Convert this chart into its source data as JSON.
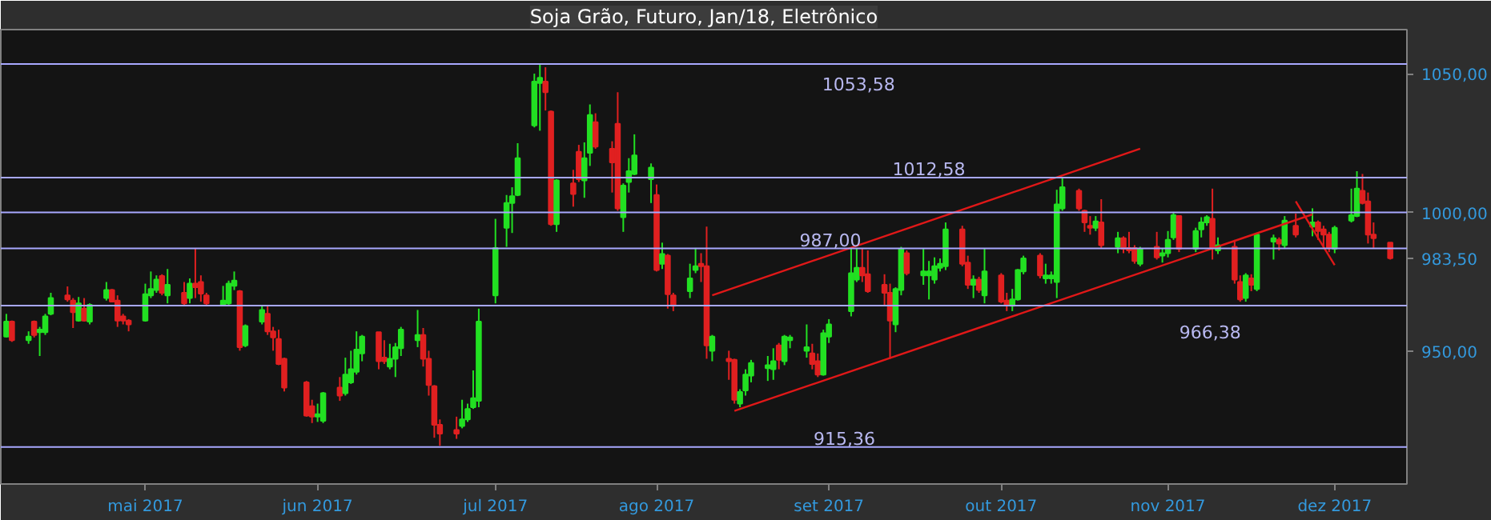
{
  "chart_data": {
    "type": "candlestick",
    "title": "Soja Grão, Futuro, Jan/18, Eletrônico",
    "x": [
      "2017-04-06",
      "2017-04-07",
      "2017-04-10",
      "2017-04-11",
      "2017-04-12",
      "2017-04-13",
      "2017-04-14",
      "2017-04-17",
      "2017-04-18",
      "2017-04-19",
      "2017-04-20",
      "2017-04-21",
      "2017-04-24",
      "2017-04-25",
      "2017-04-26",
      "2017-04-27",
      "2017-04-28",
      "2017-05-01",
      "2017-05-02",
      "2017-05-03",
      "2017-05-04",
      "2017-05-05",
      "2017-05-08",
      "2017-05-09",
      "2017-05-10",
      "2017-05-11",
      "2017-05-12",
      "2017-05-15",
      "2017-05-16",
      "2017-05-17",
      "2017-05-18",
      "2017-05-19",
      "2017-05-22",
      "2017-05-23",
      "2017-05-24",
      "2017-05-25",
      "2017-05-26",
      "2017-05-30",
      "2017-05-31",
      "2017-06-01",
      "2017-06-02",
      "2017-06-05",
      "2017-06-06",
      "2017-06-07",
      "2017-06-08",
      "2017-06-09",
      "2017-06-12",
      "2017-06-13",
      "2017-06-14",
      "2017-06-15",
      "2017-06-16",
      "2017-06-19",
      "2017-06-20",
      "2017-06-21",
      "2017-06-22",
      "2017-06-23",
      "2017-06-26",
      "2017-06-27",
      "2017-06-28",
      "2017-06-29",
      "2017-06-30",
      "2017-07-03",
      "2017-07-05",
      "2017-07-06",
      "2017-07-07",
      "2017-07-10",
      "2017-07-11",
      "2017-07-12",
      "2017-07-13",
      "2017-07-14",
      "2017-07-17",
      "2017-07-18",
      "2017-07-19",
      "2017-07-20",
      "2017-07-21",
      "2017-07-24",
      "2017-07-25",
      "2017-07-26",
      "2017-07-27",
      "2017-07-28",
      "2017-07-31",
      "2017-08-01",
      "2017-08-02",
      "2017-08-03",
      "2017-08-04",
      "2017-08-07",
      "2017-08-08",
      "2017-08-09",
      "2017-08-10",
      "2017-08-11",
      "2017-08-14",
      "2017-08-15",
      "2017-08-16",
      "2017-08-17",
      "2017-08-18",
      "2017-08-21",
      "2017-08-22",
      "2017-08-23",
      "2017-08-24",
      "2017-08-25",
      "2017-08-28",
      "2017-08-29",
      "2017-08-30",
      "2017-08-31",
      "2017-09-01",
      "2017-09-05",
      "2017-09-06",
      "2017-09-07",
      "2017-09-08",
      "2017-09-11",
      "2017-09-12",
      "2017-09-13",
      "2017-09-14",
      "2017-09-15",
      "2017-09-18",
      "2017-09-19",
      "2017-09-20",
      "2017-09-21",
      "2017-09-22",
      "2017-09-25",
      "2017-09-26",
      "2017-09-27",
      "2017-09-28",
      "2017-09-29",
      "2017-10-02",
      "2017-10-03",
      "2017-10-04",
      "2017-10-05",
      "2017-10-06",
      "2017-10-09",
      "2017-10-10",
      "2017-10-11",
      "2017-10-12",
      "2017-10-13",
      "2017-10-16",
      "2017-10-17",
      "2017-10-18",
      "2017-10-19",
      "2017-10-20",
      "2017-10-23",
      "2017-10-24",
      "2017-10-25",
      "2017-10-26",
      "2017-10-27",
      "2017-10-30",
      "2017-10-31",
      "2017-11-01",
      "2017-11-02",
      "2017-11-03",
      "2017-11-06",
      "2017-11-07",
      "2017-11-08",
      "2017-11-09",
      "2017-11-10",
      "2017-11-13",
      "2017-11-14",
      "2017-11-15",
      "2017-11-16",
      "2017-11-17",
      "2017-11-20",
      "2017-11-21",
      "2017-11-22",
      "2017-11-24",
      "2017-11-27",
      "2017-11-28",
      "2017-11-29",
      "2017-11-30",
      "2017-12-01",
      "2017-12-04",
      "2017-12-05",
      "2017-12-06",
      "2017-12-07",
      "2017-12-08",
      "2017-12-11"
    ],
    "ohlc": [
      [
        955.2,
        963.4,
        954.9,
        960.6
      ],
      [
        960.6,
        961.0,
        953.3,
        953.9
      ],
      [
        953.9,
        957.1,
        952.6,
        955.2
      ],
      [
        960.6,
        961.0,
        954.9,
        955.8
      ],
      [
        956.8,
        958.7,
        948.2,
        957.7
      ],
      [
        956.8,
        963.4,
        955.8,
        962.5
      ],
      [
        963.4,
        971.0,
        962.9,
        969.1
      ],
      [
        970.1,
        973.3,
        967.8,
        968.6
      ],
      [
        968.2,
        969.1,
        958.3,
        964.0
      ],
      [
        961.0,
        969.5,
        960.6,
        967.2
      ],
      [
        965.3,
        969.1,
        960.6,
        961.0
      ],
      [
        960.6,
        967.2,
        959.6,
        966.7
      ],
      [
        969.1,
        974.9,
        968.2,
        972.0
      ],
      [
        972.0,
        972.4,
        967.8,
        967.8
      ],
      [
        968.2,
        970.1,
        958.7,
        961.0
      ],
      [
        962.5,
        963.4,
        959.6,
        961.0
      ],
      [
        961.0,
        961.5,
        957.1,
        959.6
      ],
      [
        961.0,
        974.3,
        960.6,
        970.5
      ],
      [
        970.1,
        978.7,
        969.1,
        972.4
      ],
      [
        972.0,
        977.3,
        971.0,
        975.8
      ],
      [
        977.1,
        977.7,
        970.1,
        971.0
      ],
      [
        970.1,
        979.6,
        967.2,
        973.9
      ],
      [
        971.0,
        974.9,
        966.3,
        967.2
      ],
      [
        969.1,
        976.2,
        967.2,
        974.3
      ],
      [
        974.3,
        986.9,
        969.1,
        973.0
      ],
      [
        974.9,
        977.3,
        967.8,
        970.7
      ],
      [
        970.1,
        971.0,
        966.3,
        967.2
      ],
      [
        966.7,
        973.5,
        966.3,
        968.2
      ],
      [
        967.2,
        975.4,
        966.7,
        974.3
      ],
      [
        973.5,
        978.7,
        972.0,
        975.4
      ],
      [
        971.6,
        972.0,
        950.1,
        951.4
      ],
      [
        952.0,
        959.6,
        951.4,
        959.0
      ],
      [
        960.6,
        966.3,
        959.6,
        964.8
      ],
      [
        963.4,
        966.3,
        955.8,
        957.1
      ],
      [
        957.1,
        958.7,
        950.1,
        954.9
      ],
      [
        954.3,
        957.7,
        944.9,
        945.3
      ],
      [
        947.2,
        947.6,
        935.4,
        936.8
      ],
      [
        938.7,
        939.2,
        926.3,
        926.7
      ],
      [
        930.1,
        932.4,
        924.0,
        926.3
      ],
      [
        926.3,
        931.0,
        924.4,
        927.2
      ],
      [
        924.8,
        935.2,
        924.0,
        934.8
      ],
      [
        936.8,
        940.6,
        932.0,
        933.9
      ],
      [
        934.8,
        947.6,
        933.9,
        941.5
      ],
      [
        938.7,
        950.1,
        938.1,
        943.4
      ],
      [
        942.5,
        957.1,
        941.5,
        950.5
      ],
      [
        949.1,
        955.8,
        946.3,
        955.2
      ],
      [
        956.8,
        956.8,
        943.4,
        946.3
      ],
      [
        947.6,
        953.9,
        945.3,
        946.3
      ],
      [
        944.4,
        952.6,
        943.4,
        947.2
      ],
      [
        947.2,
        952.9,
        940.6,
        951.4
      ],
      [
        951.0,
        958.7,
        948.2,
        957.7
      ],
      [
        953.9,
        964.8,
        951.4,
        955.8
      ],
      [
        955.8,
        958.3,
        944.4,
        947.2
      ],
      [
        947.2,
        950.1,
        933.9,
        937.7
      ],
      [
        937.3,
        937.7,
        918.7,
        923.4
      ],
      [
        923.4,
        925.3,
        915.8,
        920.2
      ],
      [
        921.5,
        926.3,
        918.3,
        920.2
      ],
      [
        922.9,
        932.4,
        922.1,
        925.3
      ],
      [
        925.3,
        931.0,
        924.4,
        929.1
      ],
      [
        929.7,
        943.0,
        929.1,
        933.0
      ],
      [
        932.0,
        965.3,
        929.7,
        960.6
      ],
      [
        970.1,
        997.7,
        967.2,
        987.2
      ],
      [
        994.5,
        1006.3,
        987.6,
        1003.4
      ],
      [
        1003.4,
        1009.1,
        992.6,
        1005.9
      ],
      [
        1006.3,
        1025.0,
        1005.9,
        1019.6
      ],
      [
        1031.4,
        1050.1,
        1030.7,
        1047.2
      ],
      [
        1046.7,
        1053.5,
        1029.5,
        1048.6
      ],
      [
        1047.2,
        1052.4,
        1036.8,
        1043.4
      ],
      [
        1036.4,
        1036.8,
        995.2,
        995.8
      ],
      [
        995.8,
        1012.0,
        993.0,
        1011.6
      ],
      [
        1010.5,
        1015.4,
        1002.1,
        1006.7
      ],
      [
        1021.9,
        1024.4,
        1011.0,
        1012.0
      ],
      [
        1011.6,
        1025.3,
        1005.3,
        1019.6
      ],
      [
        1021.5,
        1039.0,
        1016.8,
        1035.2
      ],
      [
        1032.6,
        1035.8,
        1023.0,
        1023.8
      ],
      [
        1023.0,
        1025.7,
        1007.2,
        1018.1
      ],
      [
        1032.0,
        1043.4,
        1000.6,
        1001.5
      ],
      [
        998.3,
        1010.5,
        993.0,
        1009.7
      ],
      [
        1011.0,
        1019.6,
        1007.2,
        1014.9
      ],
      [
        1013.9,
        1028.2,
        1013.5,
        1020.6
      ],
      [
        1012.0,
        1017.7,
        1003.4,
        1016.2
      ],
      [
        1006.3,
        1010.1,
        978.7,
        979.2
      ],
      [
        981.5,
        989.1,
        979.6,
        985.0
      ],
      [
        984.4,
        985.0,
        965.3,
        970.5
      ],
      [
        970.1,
        971.0,
        964.4,
        966.3
      ],
      [
        971.6,
        981.5,
        969.1,
        976.2
      ],
      [
        979.2,
        987.2,
        978.1,
        980.6
      ],
      [
        981.5,
        985.3,
        974.9,
        980.6
      ],
      [
        980.6,
        994.9,
        947.2,
        952.0
      ],
      [
        950.1,
        955.8,
        946.3,
        955.2
      ],
      [
        947.2,
        950.1,
        939.6,
        946.3
      ],
      [
        946.8,
        947.2,
        931.0,
        932.4
      ],
      [
        931.0,
        936.2,
        929.7,
        935.2
      ],
      [
        935.8,
        943.4,
        933.9,
        941.5
      ],
      [
        941.1,
        946.8,
        938.7,
        945.7
      ],
      [
        943.8,
        948.2,
        939.2,
        944.9
      ],
      [
        943.4,
        951.0,
        939.6,
        946.3
      ],
      [
        952.0,
        952.9,
        943.4,
        946.8
      ],
      [
        946.3,
        955.8,
        944.9,
        955.2
      ],
      [
        953.9,
        955.8,
        951.0,
        954.9
      ],
      [
        950.1,
        959.6,
        947.6,
        951.4
      ],
      [
        949.1,
        952.6,
        943.4,
        945.3
      ],
      [
        946.3,
        949.1,
        940.6,
        941.5
      ],
      [
        941.5,
        957.7,
        941.1,
        956.4
      ],
      [
        955.2,
        961.5,
        952.9,
        959.6
      ],
      [
        964.4,
        987.2,
        962.5,
        978.1
      ],
      [
        975.8,
        987.2,
        974.9,
        980.0
      ],
      [
        980.0,
        987.2,
        974.9,
        977.3
      ],
      [
        977.7,
        986.3,
        971.0,
        971.6
      ],
      [
        973.9,
        977.7,
        966.3,
        971.0
      ],
      [
        971.0,
        974.3,
        947.2,
        961.0
      ],
      [
        959.6,
        973.0,
        956.8,
        972.4
      ],
      [
        972.0,
        987.6,
        970.1,
        986.9
      ],
      [
        985.3,
        986.3,
        977.3,
        978.1
      ],
      [
        977.3,
        986.9,
        973.9,
        978.7
      ],
      [
        977.3,
        982.5,
        968.6,
        978.7
      ],
      [
        975.8,
        983.8,
        974.3,
        980.6
      ],
      [
        980.0,
        983.4,
        978.7,
        981.5
      ],
      [
        980.6,
        996.4,
        979.2,
        993.9
      ],
      [
        993.9,
        995.2,
        980.6,
        981.5
      ],
      [
        981.9,
        984.4,
        972.4,
        973.9
      ],
      [
        973.9,
        977.3,
        969.1,
        975.8
      ],
      [
        975.8,
        976.8,
        971.0,
        972.0
      ],
      [
        970.1,
        986.9,
        967.2,
        978.7
      ],
      [
        977.3,
        978.1,
        967.2,
        967.8
      ],
      [
        968.2,
        971.0,
        964.4,
        966.7
      ],
      [
        966.3,
        972.4,
        964.4,
        968.6
      ],
      [
        968.6,
        979.6,
        968.2,
        979.2
      ],
      [
        978.7,
        984.4,
        977.7,
        983.4
      ],
      [
        984.4,
        985.3,
        976.2,
        977.3
      ],
      [
        976.2,
        981.5,
        974.3,
        977.3
      ],
      [
        976.2,
        978.7,
        974.3,
        977.3
      ],
      [
        974.9,
        1008.2,
        969.1,
        1002.9
      ],
      [
        1001.5,
        1012.4,
        1000.6,
        1009.1
      ],
      [
        1007.8,
        1008.6,
        1000.6,
        1001.5
      ],
      [
        1000.6,
        1001.0,
        993.0,
        996.4
      ],
      [
        995.2,
        998.7,
        992.0,
        994.5
      ],
      [
        994.5,
        998.7,
        993.3,
        996.8
      ],
      [
        996.4,
        1004.8,
        987.2,
        988.2
      ],
      [
        987.6,
        993.0,
        985.3,
        990.7
      ],
      [
        990.7,
        991.4,
        985.3,
        986.9
      ],
      [
        987.2,
        993.0,
        985.3,
        986.3
      ],
      [
        987.2,
        988.2,
        981.5,
        982.5
      ],
      [
        981.5,
        987.6,
        980.6,
        986.9
      ],
      [
        987.6,
        993.0,
        983.0,
        983.8
      ],
      [
        984.4,
        987.2,
        981.9,
        985.3
      ],
      [
        985.3,
        993.3,
        983.8,
        990.1
      ],
      [
        991.0,
        1000.2,
        990.1,
        999.0
      ],
      [
        998.7,
        999.0,
        985.7,
        986.9
      ],
      [
        986.9,
        994.5,
        985.7,
        993.3
      ],
      [
        993.9,
        998.3,
        991.0,
        996.4
      ],
      [
        996.4,
        999.0,
        995.2,
        998.3
      ],
      [
        997.7,
        1008.6,
        983.0,
        987.2
      ],
      [
        986.3,
        991.0,
        985.0,
        988.2
      ],
      [
        987.6,
        990.1,
        974.3,
        975.8
      ],
      [
        974.9,
        977.3,
        967.8,
        968.6
      ],
      [
        969.1,
        978.1,
        967.8,
        977.3
      ],
      [
        976.2,
        977.7,
        971.6,
        973.9
      ],
      [
        972.4,
        992.6,
        971.6,
        992.0
      ],
      [
        989.5,
        992.0,
        983.0,
        990.7
      ],
      [
        990.1,
        991.0,
        986.3,
        988.8
      ],
      [
        988.2,
        998.7,
        987.2,
        997.1
      ],
      [
        995.2,
        999.6,
        991.0,
        992.0
      ],
      [
        994.9,
        1001.5,
        991.4,
        996.4
      ],
      [
        996.4,
        997.1,
        990.1,
        993.3
      ],
      [
        993.9,
        995.2,
        987.2,
        992.0
      ],
      [
        992.0,
        993.0,
        985.7,
        987.2
      ],
      [
        986.9,
        995.2,
        985.3,
        994.5
      ],
      [
        997.1,
        1008.6,
        996.4,
        999.0
      ],
      [
        998.7,
        1014.9,
        998.3,
        1008.6
      ],
      [
        1007.8,
        1013.9,
        1002.9,
        1003.4
      ],
      [
        1004.0,
        1007.2,
        988.8,
        992.0
      ],
      [
        992.0,
        996.4,
        987.2,
        990.7
      ],
      [
        989.1,
        989.1,
        983.0,
        983.5
      ]
    ],
    "colors": [
      "#22e022",
      "#e02020",
      "#22e022",
      "#e02020",
      "#22e022",
      "#22e022",
      "#22e022",
      "#e02020",
      "#e02020",
      "#22e022",
      "#e02020",
      "#22e022",
      "#22e022",
      "#e02020",
      "#e02020",
      "#e02020",
      "#e02020",
      "#22e022",
      "#22e022",
      "#22e022",
      "#e02020",
      "#22e022",
      "#e02020",
      "#22e022",
      "#e02020",
      "#e02020",
      "#e02020",
      "#22e022",
      "#22e022",
      "#22e022",
      "#e02020",
      "#22e022",
      "#22e022",
      "#e02020",
      "#e02020",
      "#e02020",
      "#e02020",
      "#e02020",
      "#e02020",
      "#22e022",
      "#22e022",
      "#e02020",
      "#22e022",
      "#22e022",
      "#22e022",
      "#22e022",
      "#e02020",
      "#e02020",
      "#22e022",
      "#22e022",
      "#22e022",
      "#22e022",
      "#e02020",
      "#e02020",
      "#e02020",
      "#e02020",
      "#e02020",
      "#22e022",
      "#22e022",
      "#22e022",
      "#22e022",
      "#22e022",
      "#22e022",
      "#22e022",
      "#22e022",
      "#22e022",
      "#22e022",
      "#e02020",
      "#e02020",
      "#22e022",
      "#e02020",
      "#e02020",
      "#22e022",
      "#22e022",
      "#e02020",
      "#e02020",
      "#e02020",
      "#22e022",
      "#22e022",
      "#22e022",
      "#22e022",
      "#e02020",
      "#22e022",
      "#e02020",
      "#e02020",
      "#22e022",
      "#22e022",
      "#e02020",
      "#e02020",
      "#22e022",
      "#e02020",
      "#e02020",
      "#22e022",
      "#22e022",
      "#22e022",
      "#22e022",
      "#22e022",
      "#e02020",
      "#22e022",
      "#22e022",
      "#22e022",
      "#e02020",
      "#e02020",
      "#22e022",
      "#22e022",
      "#22e022",
      "#22e022",
      "#e02020",
      "#e02020",
      "#e02020",
      "#e02020",
      "#22e022",
      "#22e022",
      "#e02020",
      "#22e022",
      "#22e022",
      "#22e022",
      "#22e022",
      "#22e022",
      "#e02020",
      "#e02020",
      "#22e022",
      "#e02020",
      "#22e022",
      "#e02020",
      "#e02020",
      "#22e022",
      "#22e022",
      "#22e022",
      "#e02020",
      "#22e022",
      "#22e022",
      "#22e022",
      "#22e022",
      "#e02020",
      "#e02020",
      "#e02020",
      "#22e022",
      "#e02020",
      "#22e022",
      "#e02020",
      "#e02020",
      "#e02020",
      "#22e022",
      "#e02020",
      "#22e022",
      "#22e022",
      "#22e022",
      "#e02020",
      "#22e022",
      "#22e022",
      "#22e022",
      "#e02020",
      "#22e022",
      "#e02020",
      "#e02020",
      "#22e022",
      "#e02020",
      "#22e022",
      "#22e022",
      "#e02020",
      "#22e022",
      "#e02020",
      "#22e022",
      "#e02020",
      "#e02020",
      "#e02020",
      "#22e022",
      "#22e022",
      "#22e022",
      "#e02020",
      "#e02020",
      "#e02020",
      "#e02020"
    ],
    "series": [
      {
        "type": "line",
        "color": "#e01818",
        "x": [
          "2017-08-11",
          "2017-10-27"
        ],
        "values": [
          970.1,
          1023.0
        ]
      },
      {
        "type": "line",
        "color": "#e01818",
        "x": [
          "2017-08-15",
          "2017-11-27"
        ],
        "values": [
          928.4,
          999.3
        ]
      },
      {
        "type": "line",
        "color": "#e01818",
        "x": [
          "2017-11-24",
          "2017-12-01"
        ],
        "values": [
          1004.0,
          981.0
        ]
      }
    ],
    "xlim": [
      "2017-04-05",
      "2017-12-14"
    ],
    "xticks": [
      {
        "value": "2017-05-01",
        "label": "mai 2017"
      },
      {
        "value": "2017-06-01",
        "label": "jun 2017"
      },
      {
        "value": "2017-07-03",
        "label": "jul 2017"
      },
      {
        "value": "2017-08-01",
        "label": "ago 2017"
      },
      {
        "value": "2017-09-01",
        "label": "set 2017"
      },
      {
        "value": "2017-10-02",
        "label": "out 2017"
      },
      {
        "value": "2017-11-01",
        "label": "nov 2017"
      },
      {
        "value": "2017-12-01",
        "label": "dez 2017"
      }
    ],
    "ylim": [
      902,
      1066
    ],
    "yticks": [
      {
        "value": 950,
        "label": "950,00"
      },
      {
        "value": 983.5,
        "label": "983,50"
      },
      {
        "value": 1000,
        "label": "1000,00"
      },
      {
        "value": 1050,
        "label": "1050,00"
      }
    ],
    "ref_lines": [
      {
        "axis": "y",
        "value": 1053.58,
        "label": "1053,58",
        "color": "#a8a8ff"
      },
      {
        "axis": "y",
        "value": 1012.58,
        "label": "1012,58",
        "color": "#a8a8ff"
      },
      {
        "axis": "y",
        "value": 1000,
        "label": null,
        "color": "#a8a8ff"
      },
      {
        "axis": "y",
        "value": 987.0,
        "label": "987,00",
        "color": "#a8a8ff"
      },
      {
        "axis": "y",
        "value": 966.38,
        "label": "966,38",
        "color": "#a8a8ff"
      },
      {
        "axis": "y",
        "value": 915.36,
        "label": "915,36",
        "color": "#a8a8ff"
      }
    ]
  }
}
